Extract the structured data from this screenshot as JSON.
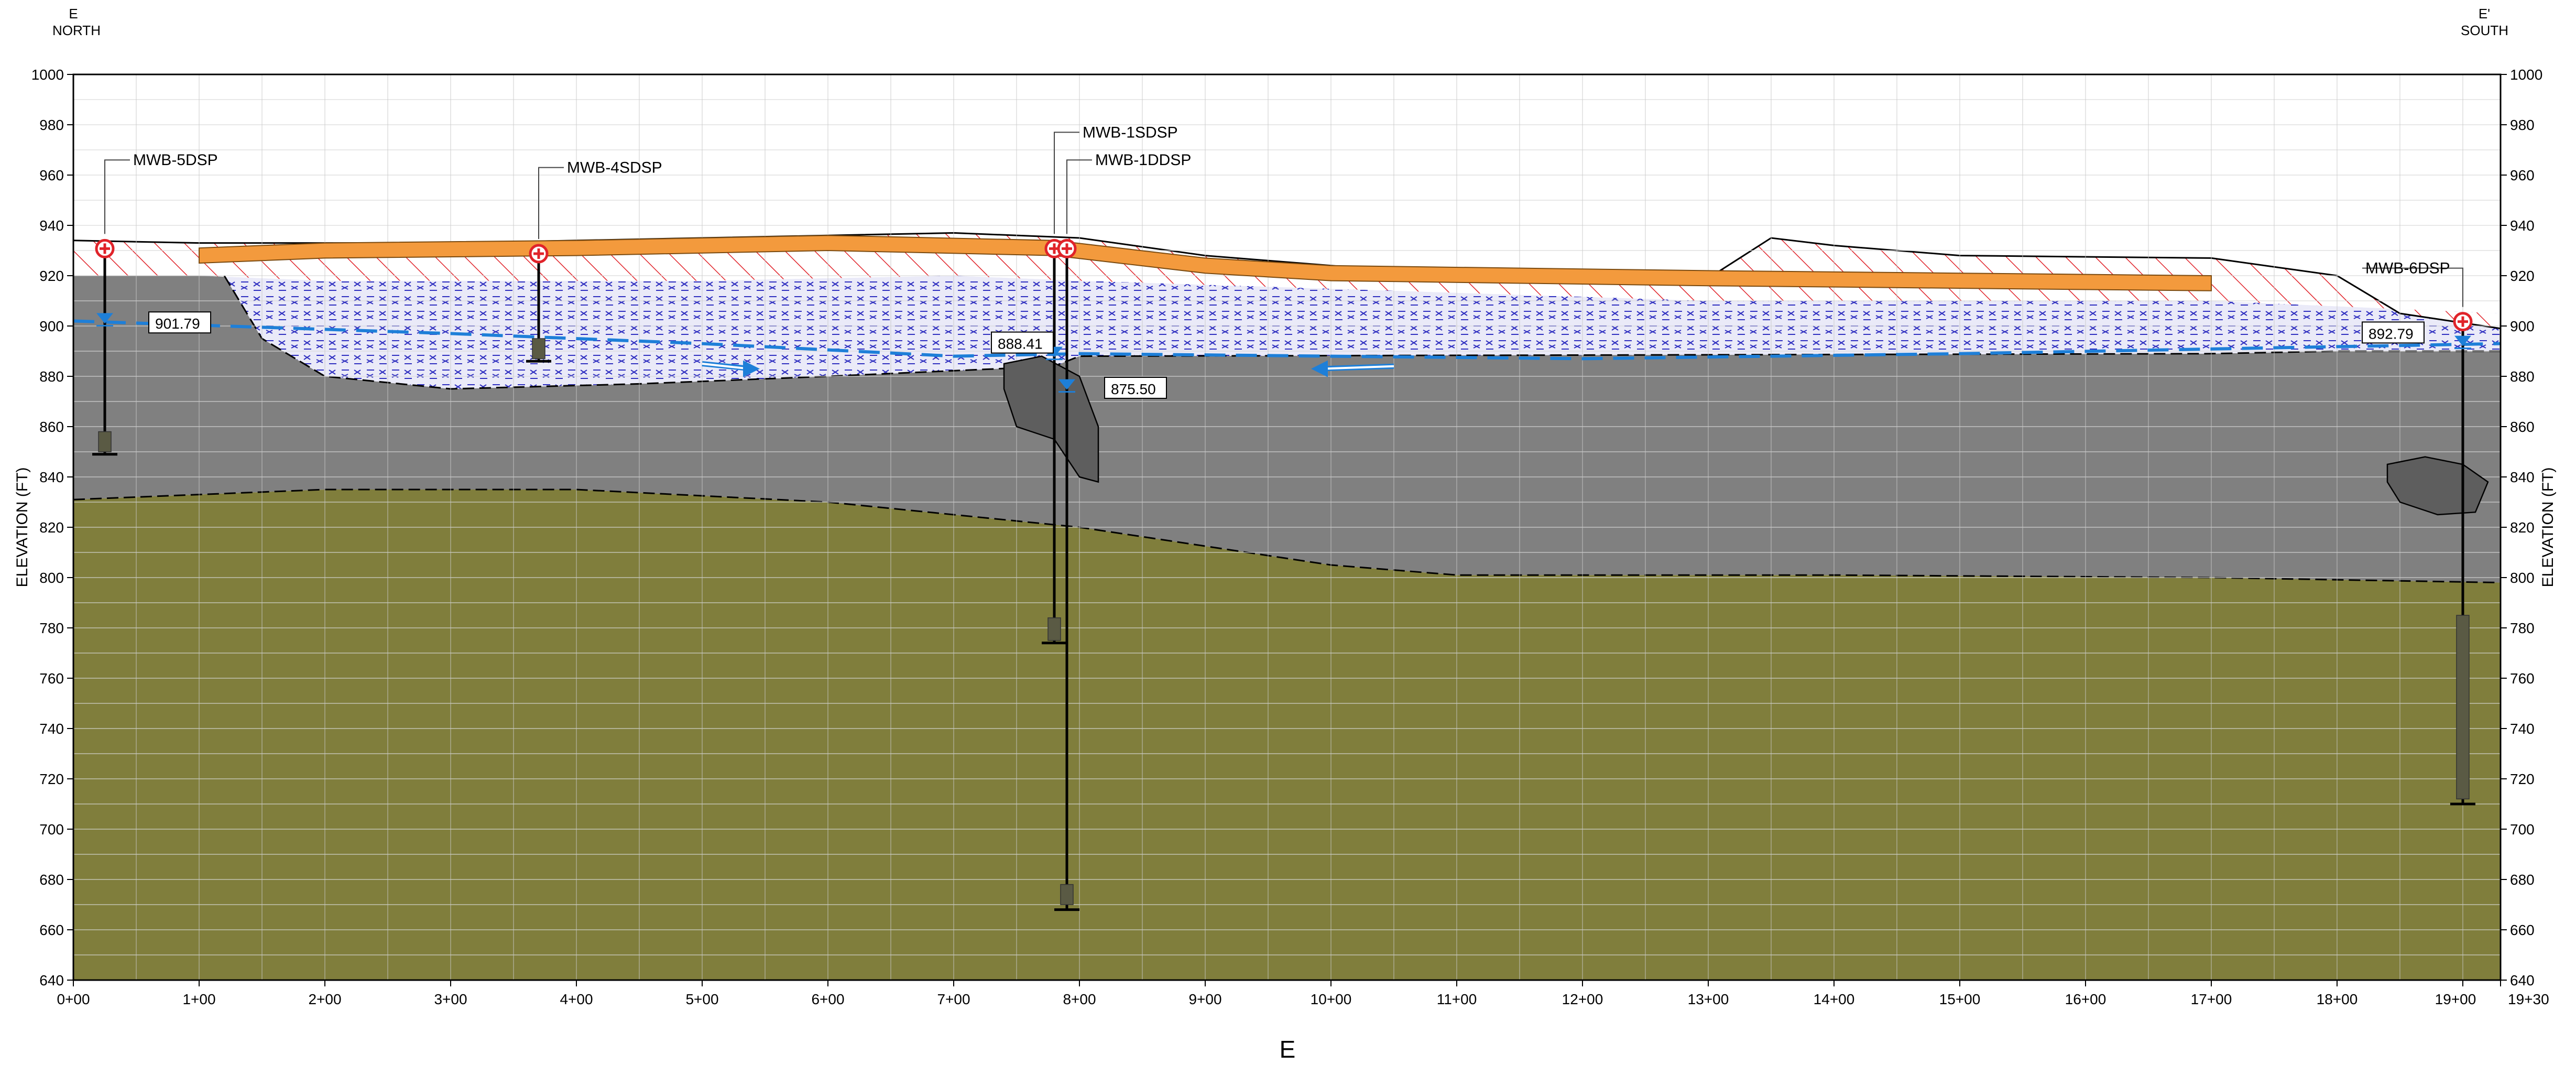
{
  "header": {
    "left_letter": "E",
    "left_direction": "NORTH",
    "right_letter": "E'",
    "right_direction": "SOUTH"
  },
  "axes": {
    "y_label_left": "ELEVATION (FT)",
    "y_label_right": "ELEVATION (FT)",
    "x_title": "E",
    "y_ticks": [
      "1000",
      "980",
      "960",
      "940",
      "920",
      "900",
      "880",
      "860",
      "840",
      "820",
      "800",
      "780",
      "760",
      "740",
      "720",
      "700",
      "680",
      "660",
      "640"
    ],
    "x_ticks": [
      "0+00",
      "1+00",
      "2+00",
      "3+00",
      "4+00",
      "5+00",
      "6+00",
      "7+00",
      "8+00",
      "9+00",
      "10+00",
      "11+00",
      "12+00",
      "13+00",
      "14+00",
      "15+00",
      "16+00",
      "17+00",
      "18+00",
      "19+00",
      "19+30"
    ]
  },
  "section": {
    "x_range_ft": [
      0,
      1930
    ],
    "y_range_ft": [
      640,
      1000
    ],
    "ground_surface": [
      [
        0,
        934
      ],
      [
        100,
        933
      ],
      [
        300,
        933
      ],
      [
        500,
        935
      ],
      [
        700,
        937
      ],
      [
        800,
        935
      ],
      [
        900,
        928
      ],
      [
        1000,
        924
      ],
      [
        1100,
        920
      ],
      [
        1300,
        919
      ],
      [
        1350,
        935
      ],
      [
        1400,
        932
      ],
      [
        1500,
        928
      ],
      [
        1700,
        927
      ],
      [
        1800,
        920
      ],
      [
        1850,
        905
      ],
      [
        1930,
        899
      ]
    ],
    "fill_layer_bottom": [
      [
        0,
        920
      ],
      [
        100,
        920
      ],
      [
        200,
        918
      ],
      [
        500,
        918
      ],
      [
        700,
        920
      ],
      [
        800,
        918
      ],
      [
        1300,
        910
      ],
      [
        1700,
        910
      ],
      [
        1930,
        905
      ]
    ],
    "sand_layer_bottom": [
      [
        120,
        920
      ],
      [
        150,
        895
      ],
      [
        200,
        880
      ],
      [
        300,
        875
      ],
      [
        450,
        877
      ],
      [
        600,
        880
      ],
      [
        780,
        884
      ],
      [
        800,
        888
      ],
      [
        1700,
        889
      ],
      [
        1800,
        890
      ],
      [
        1930,
        890
      ]
    ],
    "clay_top_line": [
      [
        0,
        831
      ],
      [
        200,
        835
      ],
      [
        400,
        835
      ],
      [
        600,
        830
      ],
      [
        800,
        820
      ],
      [
        1000,
        805
      ],
      [
        1100,
        801
      ],
      [
        1400,
        801
      ],
      [
        1700,
        800
      ],
      [
        1930,
        798
      ]
    ],
    "water_table": [
      [
        0,
        902
      ],
      [
        300,
        897
      ],
      [
        500,
        893
      ],
      [
        700,
        888
      ],
      [
        800,
        889
      ],
      [
        1200,
        887
      ],
      [
        1500,
        889
      ],
      [
        1930,
        893
      ]
    ],
    "orange_layer": [
      [
        100,
        929
      ],
      [
        200,
        931
      ],
      [
        400,
        932
      ],
      [
        600,
        934
      ],
      [
        780,
        932
      ],
      [
        900,
        925
      ],
      [
        1000,
        922
      ],
      [
        1300,
        920
      ],
      [
        1500,
        919
      ],
      [
        1700,
        918
      ]
    ],
    "lenses": [
      {
        "name": "lens-mwb1",
        "pts": [
          [
            740,
            885
          ],
          [
            770,
            888
          ],
          [
            800,
            880
          ],
          [
            815,
            860
          ],
          [
            815,
            838
          ],
          [
            800,
            840
          ],
          [
            780,
            855
          ],
          [
            750,
            860
          ],
          [
            740,
            875
          ]
        ]
      },
      {
        "name": "lens-mwb6",
        "pts": [
          [
            1840,
            845
          ],
          [
            1870,
            848
          ],
          [
            1900,
            845
          ],
          [
            1920,
            838
          ],
          [
            1910,
            826
          ],
          [
            1880,
            825
          ],
          [
            1850,
            830
          ],
          [
            1840,
            838
          ]
        ]
      }
    ],
    "flow_arrows": [
      {
        "from": [
          500,
          885
        ],
        "to": [
          540,
          883
        ]
      },
      {
        "from": [
          1050,
          884
        ],
        "to": [
          990,
          883
        ]
      }
    ]
  },
  "wells": [
    {
      "id": "MWB-5DSP",
      "station": 25,
      "top_elev": 932,
      "bottom_elev": 849,
      "screen_top": 858,
      "screen_bottom": 850,
      "water_level": "901.79",
      "label_station": 45,
      "label_elev": 966,
      "box_station": 60,
      "box_elev": 901
    },
    {
      "id": "MWB-4SDSP",
      "station": 370,
      "top_elev": 930,
      "bottom_elev": 886,
      "screen_top": 895,
      "screen_bottom": 887,
      "water_level": null,
      "label_station": 390,
      "label_elev": 963,
      "box_station": null,
      "box_elev": null
    },
    {
      "id": "MWB-1SDSP",
      "station": 780,
      "top_elev": 932,
      "bottom_elev": 774,
      "screen_top": 784,
      "screen_bottom": 775,
      "water_level": "888.41",
      "label_station": 800,
      "label_elev": 977,
      "box_station": 730,
      "box_elev": 893
    },
    {
      "id": "MWB-1DDSP",
      "station": 790,
      "top_elev": 932,
      "bottom_elev": 668,
      "screen_top": 678,
      "screen_bottom": 670,
      "water_level": "875.50",
      "label_station": 810,
      "label_elev": 966,
      "box_station": 820,
      "box_elev": 875
    },
    {
      "id": "MWB-6DSP",
      "station": 1900,
      "top_elev": 903,
      "bottom_elev": 710,
      "screen_top": 785,
      "screen_bottom": 712,
      "water_level": "892.79",
      "label_station": 1820,
      "label_elev": 923,
      "box_station": 1820,
      "box_elev": 897
    }
  ],
  "colors": {
    "grid": "#c8c8c8",
    "clay": "#807e3c",
    "clay_grid": "#99985a",
    "silt": "#808080",
    "silt_grid": "#959595",
    "sand_bg": "#eaeaf8",
    "sand_hatch": "#2f2fc0",
    "fill_hatch": "#e0232a",
    "orange": "#f39a3d",
    "water": "#1e7fd8",
    "lens": "#5e5e5e",
    "screen": "#5a5a44"
  }
}
